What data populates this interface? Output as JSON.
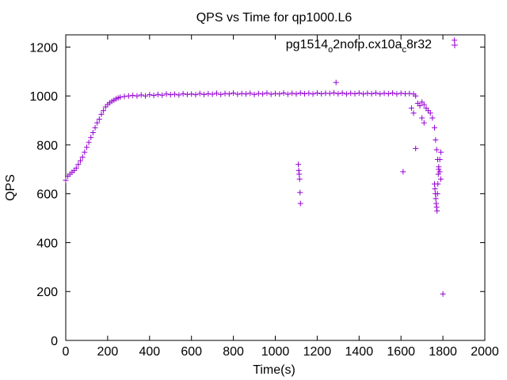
{
  "chart_data": {
    "type": "scatter",
    "title": "QPS vs Time for qp1000.L6",
    "xlabel": "Time(s)",
    "ylabel": "QPS",
    "xlim": [
      0,
      2000
    ],
    "ylim": [
      0,
      1250
    ],
    "xticks": [
      0,
      200,
      400,
      600,
      800,
      1000,
      1200,
      1400,
      1600,
      1800,
      2000
    ],
    "yticks": [
      0,
      200,
      400,
      600,
      800,
      1000,
      1200
    ],
    "grid": false,
    "legend_position": "top-right",
    "marker": "plus",
    "series": [
      {
        "name": "pg1514_o2nofp.cx10a_c8r32",
        "name_parts": [
          "pg1514",
          "o",
          "2nofp.cx10a",
          "c",
          "8r32"
        ],
        "color": "#9400d3",
        "points": [
          [
            0,
            655
          ],
          [
            10,
            672
          ],
          [
            20,
            680
          ],
          [
            30,
            688
          ],
          [
            40,
            695
          ],
          [
            50,
            705
          ],
          [
            60,
            720
          ],
          [
            70,
            735
          ],
          [
            80,
            750
          ],
          [
            90,
            770
          ],
          [
            100,
            790
          ],
          [
            110,
            810
          ],
          [
            120,
            830
          ],
          [
            130,
            850
          ],
          [
            140,
            870
          ],
          [
            150,
            890
          ],
          [
            160,
            905
          ],
          [
            170,
            925
          ],
          [
            180,
            940
          ],
          [
            190,
            955
          ],
          [
            200,
            965
          ],
          [
            210,
            972
          ],
          [
            220,
            978
          ],
          [
            230,
            983
          ],
          [
            240,
            988
          ],
          [
            250,
            992
          ],
          [
            260,
            995
          ],
          [
            280,
            998
          ],
          [
            300,
            1000
          ],
          [
            320,
            1002
          ],
          [
            340,
            1000
          ],
          [
            360,
            1004
          ],
          [
            380,
            1000
          ],
          [
            400,
            1005
          ],
          [
            420,
            1002
          ],
          [
            440,
            1006
          ],
          [
            460,
            1003
          ],
          [
            480,
            1008
          ],
          [
            500,
            1005
          ],
          [
            520,
            1007
          ],
          [
            540,
            1004
          ],
          [
            560,
            1009
          ],
          [
            580,
            1006
          ],
          [
            600,
            1008
          ],
          [
            620,
            1005
          ],
          [
            640,
            1010
          ],
          [
            660,
            1006
          ],
          [
            680,
            1009
          ],
          [
            700,
            1007
          ],
          [
            720,
            1011
          ],
          [
            740,
            1006
          ],
          [
            760,
            1010
          ],
          [
            780,
            1008
          ],
          [
            800,
            1012
          ],
          [
            820,
            1007
          ],
          [
            840,
            1010
          ],
          [
            860,
            1008
          ],
          [
            880,
            1011
          ],
          [
            900,
            1006
          ],
          [
            920,
            1010
          ],
          [
            940,
            1008
          ],
          [
            960,
            1012
          ],
          [
            980,
            1007
          ],
          [
            1000,
            1010
          ],
          [
            1020,
            1008
          ],
          [
            1040,
            1012
          ],
          [
            1060,
            1007
          ],
          [
            1080,
            1011
          ],
          [
            1100,
            1008
          ],
          [
            1120,
            1012
          ],
          [
            1140,
            1009
          ],
          [
            1160,
            1011
          ],
          [
            1180,
            1008
          ],
          [
            1200,
            1012
          ],
          [
            1220,
            1009
          ],
          [
            1240,
            1011
          ],
          [
            1260,
            1010
          ],
          [
            1280,
            1013
          ],
          [
            1290,
            1055
          ],
          [
            1300,
            1009
          ],
          [
            1320,
            1012
          ],
          [
            1340,
            1008
          ],
          [
            1360,
            1011
          ],
          [
            1380,
            1009
          ],
          [
            1400,
            1012
          ],
          [
            1420,
            1008
          ],
          [
            1440,
            1011
          ],
          [
            1460,
            1009
          ],
          [
            1480,
            1012
          ],
          [
            1500,
            1008
          ],
          [
            1520,
            1011
          ],
          [
            1540,
            1009
          ],
          [
            1560,
            1012
          ],
          [
            1580,
            1008
          ],
          [
            1600,
            1011
          ],
          [
            1620,
            1009
          ],
          [
            1640,
            1010
          ],
          [
            1660,
            1008
          ],
          [
            1670,
            1000
          ],
          [
            1680,
            970
          ],
          [
            1690,
            960
          ],
          [
            1700,
            975
          ],
          [
            1710,
            965
          ],
          [
            1720,
            950
          ],
          [
            1730,
            940
          ],
          [
            1740,
            930
          ],
          [
            1750,
            910
          ],
          [
            1760,
            870
          ],
          [
            1765,
            820
          ],
          [
            1770,
            780
          ],
          [
            1775,
            740
          ],
          [
            1780,
            700
          ],
          [
            1785,
            740
          ],
          [
            1790,
            770
          ],
          [
            1110,
            720
          ],
          [
            1112,
            695
          ],
          [
            1114,
            680
          ],
          [
            1116,
            660
          ],
          [
            1118,
            605
          ],
          [
            1120,
            560
          ],
          [
            1610,
            690
          ],
          [
            1670,
            785
          ],
          [
            1650,
            950
          ],
          [
            1660,
            930
          ],
          [
            1700,
            910
          ],
          [
            1710,
            890
          ],
          [
            1760,
            640
          ],
          [
            1762,
            620
          ],
          [
            1764,
            600
          ],
          [
            1766,
            580
          ],
          [
            1768,
            560
          ],
          [
            1770,
            545
          ],
          [
            1772,
            530
          ],
          [
            1774,
            600
          ],
          [
            1776,
            640
          ],
          [
            1778,
            680
          ],
          [
            1780,
            710
          ],
          [
            1785,
            690
          ],
          [
            1790,
            660
          ],
          [
            1800,
            190
          ],
          [
            1855,
            1228
          ]
        ]
      }
    ]
  }
}
